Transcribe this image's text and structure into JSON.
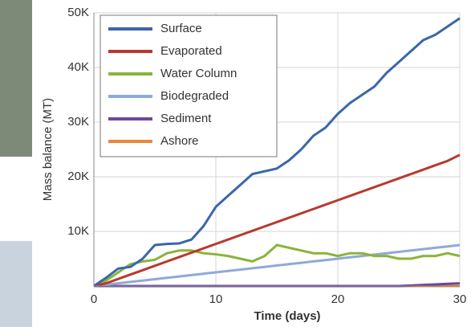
{
  "chart_data": {
    "type": "line",
    "x_label": "Time (days)",
    "y_label": "Mass balance (MT)",
    "x": [
      0,
      1,
      2,
      3,
      4,
      5,
      6,
      7,
      8,
      9,
      10,
      11,
      12,
      13,
      14,
      15,
      16,
      17,
      18,
      19,
      20,
      21,
      22,
      23,
      24,
      25,
      26,
      27,
      28,
      29,
      30
    ],
    "series": [
      {
        "name": "Surface",
        "color": "#3b66aa",
        "values": [
          0,
          1500,
          3200,
          3500,
          5000,
          7500,
          7700,
          7800,
          8500,
          11000,
          14500,
          16500,
          18500,
          20500,
          21000,
          21500,
          23000,
          25000,
          27500,
          29000,
          31500,
          33500,
          35000,
          36500,
          39000,
          41000,
          43000,
          45000,
          46000,
          47500,
          49000
        ]
      },
      {
        "name": "Evaporated",
        "color": "#b8392e",
        "values": [
          0,
          500,
          1300,
          2100,
          2900,
          3700,
          4500,
          5300,
          6100,
          6900,
          7700,
          8500,
          9300,
          10100,
          10900,
          11700,
          12500,
          13300,
          14100,
          14900,
          15700,
          16500,
          17300,
          18100,
          18900,
          19700,
          20500,
          21300,
          22100,
          22900,
          24000
        ]
      },
      {
        "name": "Water Column",
        "color": "#8ab43a",
        "values": [
          0,
          1000,
          2500,
          4000,
          4500,
          4800,
          6000,
          6500,
          6500,
          6000,
          5800,
          5500,
          5000,
          4500,
          5500,
          7500,
          7000,
          6500,
          6000,
          6000,
          5500,
          6000,
          6000,
          5500,
          5500,
          5000,
          5000,
          5500,
          5500,
          6000,
          5500
        ]
      },
      {
        "name": "Biodegraded",
        "color": "#8fa9d8",
        "values": [
          0,
          250,
          500,
          750,
          1000,
          1250,
          1500,
          1750,
          2000,
          2250,
          2500,
          2750,
          3000,
          3250,
          3500,
          3750,
          4000,
          4250,
          4500,
          4750,
          5000,
          5250,
          5500,
          5750,
          6000,
          6250,
          6500,
          6750,
          7000,
          7250,
          7500
        ]
      },
      {
        "name": "Sediment",
        "color": "#6a4a9a",
        "values": [
          0,
          0,
          0,
          0,
          0,
          0,
          0,
          0,
          0,
          0,
          0,
          0,
          0,
          0,
          0,
          0,
          0,
          0,
          0,
          0,
          0,
          0,
          0,
          0,
          0,
          0,
          100,
          200,
          300,
          400,
          500
        ]
      },
      {
        "name": "Ashore",
        "color": "#e8883a",
        "values": [
          0,
          0,
          0,
          0,
          0,
          0,
          0,
          0,
          0,
          0,
          0,
          0,
          0,
          0,
          0,
          0,
          0,
          0,
          0,
          0,
          0,
          0,
          0,
          0,
          0,
          0,
          0,
          0,
          0,
          0,
          0
        ]
      }
    ],
    "xlim": [
      0,
      30
    ],
    "xticks": [
      0,
      10,
      20,
      30
    ],
    "ylim": [
      0,
      50000
    ],
    "yticks": [
      {
        "value": 10000,
        "label": "10K"
      },
      {
        "value": 20000,
        "label": "20K"
      },
      {
        "value": 30000,
        "label": "30K"
      },
      {
        "value": 40000,
        "label": "40K"
      },
      {
        "value": 50000,
        "label": "50K"
      }
    ],
    "grid": true,
    "legend": "upper left"
  }
}
